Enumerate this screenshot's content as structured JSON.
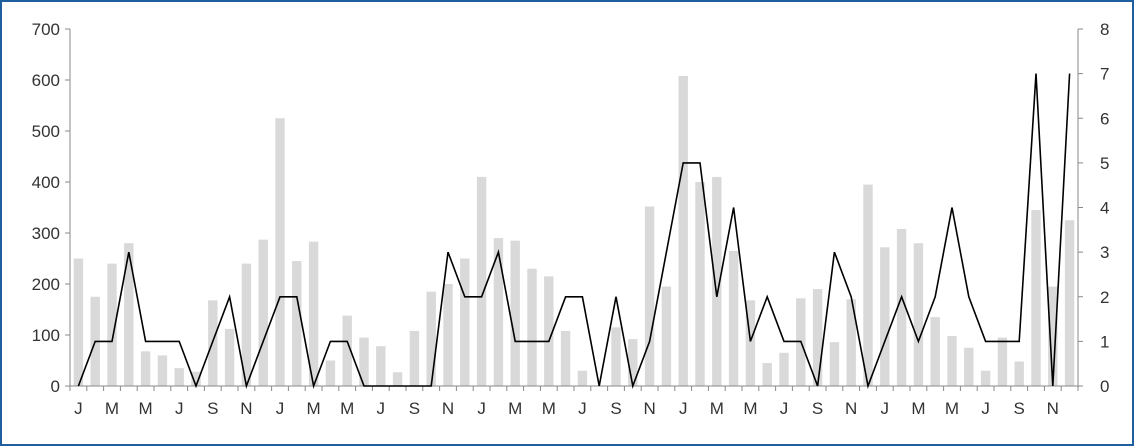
{
  "chart_data": {
    "type": "bar+line",
    "categories": [
      "J",
      "F",
      "M",
      "A",
      "M",
      "J",
      "J",
      "A",
      "S",
      "O",
      "N",
      "D",
      "J",
      "F",
      "M",
      "A",
      "M",
      "J",
      "J",
      "A",
      "S",
      "O",
      "N",
      "D",
      "J",
      "F",
      "M",
      "A",
      "M",
      "J",
      "J",
      "A",
      "S",
      "O",
      "N",
      "D",
      "J",
      "F",
      "M",
      "A",
      "M",
      "J",
      "J",
      "A",
      "S",
      "O",
      "N",
      "D",
      "J",
      "F",
      "M",
      "A",
      "M",
      "J",
      "J",
      "A",
      "S",
      "O",
      "N",
      "D"
    ],
    "x_tick_labels_shown": [
      "J",
      "M",
      "M",
      "J",
      "S",
      "N",
      "J",
      "M",
      "M",
      "J",
      "S",
      "N",
      "J",
      "M",
      "M",
      "J",
      "S",
      "N",
      "J",
      "M",
      "M",
      "J",
      "S",
      "N",
      "J",
      "M",
      "M",
      "J",
      "S",
      "N"
    ],
    "series": [
      {
        "type": "bar",
        "axis": "left",
        "color": "#d9d9d9",
        "values": [
          250,
          175,
          240,
          280,
          68,
          60,
          35,
          28,
          168,
          112,
          240,
          287,
          525,
          245,
          283,
          50,
          138,
          95,
          78,
          27,
          108,
          185,
          200,
          250,
          410,
          290,
          285,
          230,
          215,
          108,
          30,
          0,
          115,
          92,
          352,
          195,
          608,
          400,
          410,
          265,
          168,
          45,
          65,
          172,
          190,
          86,
          170,
          395,
          272,
          308,
          280,
          135,
          98,
          75,
          30,
          95,
          48,
          345,
          195,
          325
        ]
      },
      {
        "type": "line",
        "axis": "right",
        "color": "#000000",
        "values": [
          0,
          1,
          1,
          3,
          1,
          1,
          1,
          0,
          1,
          2,
          0,
          1,
          2,
          2,
          0,
          1,
          1,
          0,
          0,
          0,
          0,
          0,
          3,
          2,
          2,
          3,
          1,
          1,
          1,
          2,
          2,
          0,
          2,
          0,
          1,
          3,
          5,
          5,
          2,
          4,
          1,
          2,
          1,
          1,
          0,
          3,
          2,
          0,
          1,
          2,
          1,
          2,
          4,
          2,
          1,
          1,
          1,
          7,
          0,
          7
        ]
      }
    ],
    "left_axis": {
      "min": 0,
      "max": 700,
      "step": 100,
      "ticks": [
        "0",
        "100",
        "200",
        "300",
        "400",
        "500",
        "600",
        "700"
      ]
    },
    "right_axis": {
      "min": 0,
      "max": 8,
      "step": 1,
      "ticks": [
        "0",
        "1",
        "2",
        "3",
        "4",
        "5",
        "6",
        "7",
        "8"
      ]
    },
    "grid": false,
    "legend": "none",
    "title": "",
    "xlabel": "",
    "ylabel": ""
  }
}
